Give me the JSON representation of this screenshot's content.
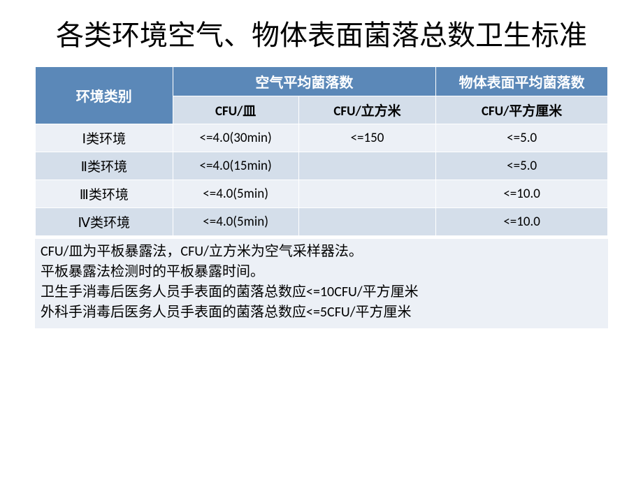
{
  "title": "各类环境空气、物体表面菌落总数卫生标准",
  "table": {
    "headers": {
      "envType": "环境类别",
      "air": "空气平均菌落数",
      "surface": "物体表面平均菌落数"
    },
    "subheaders": {
      "cfuDish": "CFU/皿",
      "cfuCubic": "CFU/立方米",
      "cfuSqcm": "CFU/平方厘米"
    },
    "rows": [
      {
        "env": "Ⅰ类环境",
        "dish": "<=4.0(30min)",
        "cubic": "<=150",
        "sqcm": "<=5.0"
      },
      {
        "env": "Ⅱ类环境",
        "dish": "<=4.0(15min)",
        "cubic": "",
        "sqcm": "<=5.0"
      },
      {
        "env": "Ⅲ类环境",
        "dish": "<=4.0(5min)",
        "cubic": "",
        "sqcm": "<=10.0"
      },
      {
        "env": "Ⅳ类环境",
        "dish": "<=4.0(5min)",
        "cubic": "",
        "sqcm": "<=10.0"
      }
    ]
  },
  "notes": [
    "CFU/皿为平板暴露法，CFU/立方米为空气采样器法。",
    "平板暴露法检测时的平板暴露时间。",
    "卫生手消毒后医务人员手表面的菌落总数应<=10CFU/平方厘米",
    "外科手消毒后医务人员手表面的菌落总数应<=5CFU/平方厘米"
  ],
  "colors": {
    "headerBg": "#5b88b8",
    "lightBg": "#ecf0f6",
    "altBg": "#d4deea"
  }
}
